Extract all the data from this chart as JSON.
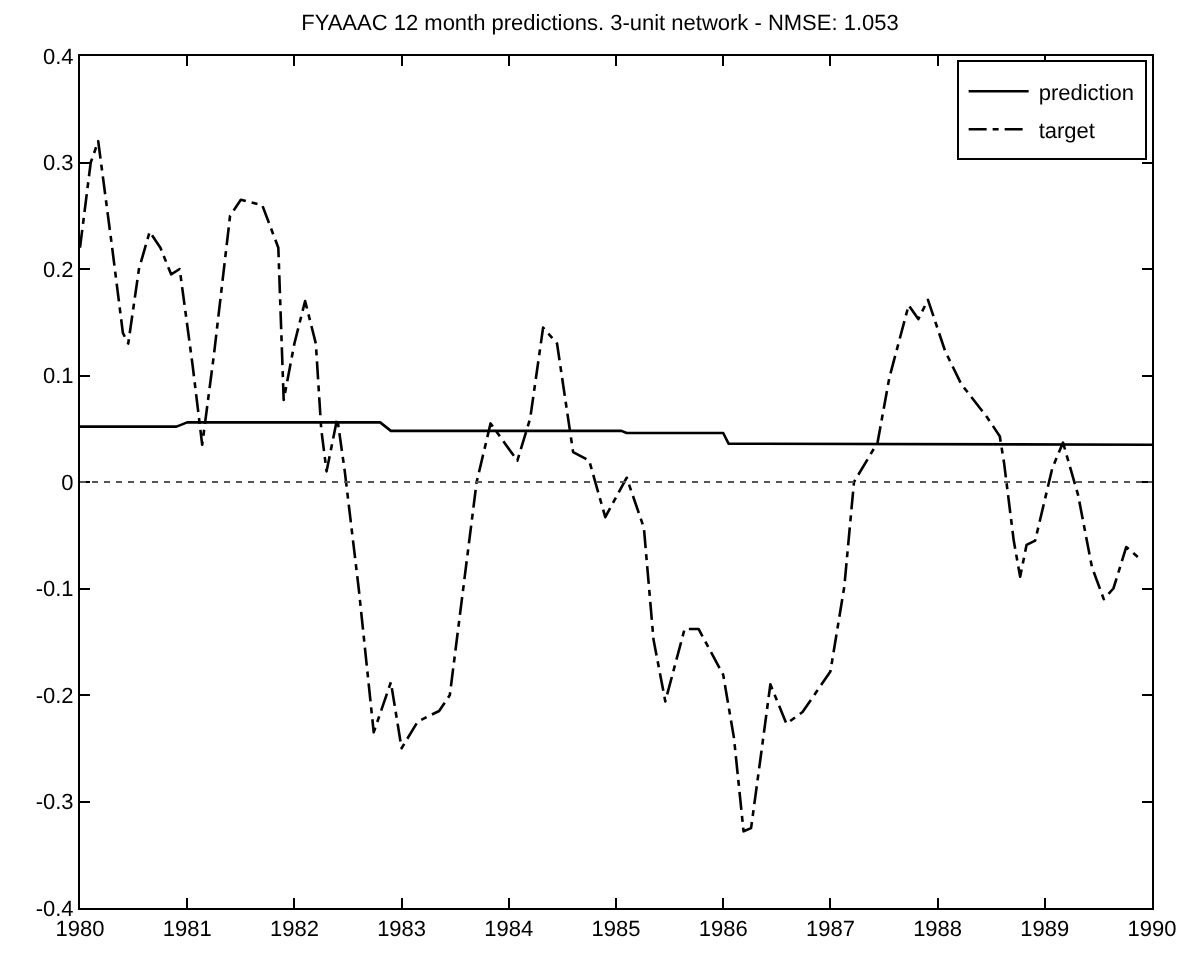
{
  "chart_data": {
    "type": "line",
    "title": "FYAAAC 12 month predictions. 3-unit network - NMSE: 1.053",
    "xlim": [
      1980,
      1990
    ],
    "xticks": [
      1980,
      1981,
      1982,
      1983,
      1984,
      1985,
      1986,
      1987,
      1988,
      1989,
      1990
    ],
    "ylim": [
      -0.4,
      0.4
    ],
    "yticks": [
      -0.4,
      -0.3,
      -0.2,
      -0.1,
      0,
      0.1,
      0.2,
      0.3,
      0.4
    ],
    "legend": "top right",
    "marker": "none",
    "ref_lines": [
      {
        "axis": "y",
        "value": 0,
        "color": "#555555",
        "line_style": "dotted"
      }
    ],
    "series": [
      {
        "name": "prediction",
        "color": "#000000",
        "line_style": "solid",
        "x": [
          1980,
          1980.9,
          1981.0,
          1982.8,
          1982.9,
          1985.05,
          1985.1,
          1986.0,
          1986.05,
          1990
        ],
        "values": [
          0.052,
          0.052,
          0.056,
          0.056,
          0.048,
          0.048,
          0.046,
          0.046,
          0.036,
          0.035
        ]
      },
      {
        "name": "target",
        "color": "#000000",
        "line_style": "dashed",
        "x": [
          1980,
          1980.1,
          1980.17,
          1980.3,
          1980.4,
          1980.45,
          1980.55,
          1980.65,
          1980.75,
          1980.85,
          1980.93,
          1981.05,
          1981.14,
          1981.25,
          1981.4,
          1981.5,
          1981.7,
          1981.85,
          1981.9,
          1982.0,
          1982.1,
          1982.2,
          1982.25,
          1982.3,
          1982.4,
          1982.47,
          1982.6,
          1982.74,
          1982.9,
          1983.0,
          1983.15,
          1983.35,
          1983.45,
          1983.6,
          1983.7,
          1983.83,
          1984.08,
          1984.2,
          1984.32,
          1984.45,
          1984.6,
          1984.75,
          1984.9,
          1985.1,
          1985.26,
          1985.35,
          1985.46,
          1985.64,
          1985.77,
          1986.0,
          1986.1,
          1986.19,
          1986.26,
          1986.35,
          1986.44,
          1986.59,
          1986.74,
          1987.0,
          1987.13,
          1987.22,
          1987.44,
          1987.55,
          1987.73,
          1987.82,
          1987.91,
          1988.07,
          1988.22,
          1988.46,
          1988.58,
          1988.62,
          1988.71,
          1988.77,
          1988.83,
          1988.91,
          1989.07,
          1989.17,
          1989.31,
          1989.44,
          1989.55,
          1989.64,
          1989.76,
          1989.91
        ],
        "values": [
          0.22,
          0.3,
          0.32,
          0.22,
          0.14,
          0.13,
          0.2,
          0.235,
          0.22,
          0.195,
          0.2,
          0.11,
          0.035,
          0.12,
          0.25,
          0.265,
          0.26,
          0.22,
          0.077,
          0.13,
          0.17,
          0.13,
          0.05,
          0.01,
          0.06,
          0.01,
          -0.1,
          -0.235,
          -0.188,
          -0.25,
          -0.225,
          -0.215,
          -0.2,
          -0.08,
          0.0,
          0.055,
          0.02,
          0.06,
          0.145,
          0.13,
          0.028,
          0.02,
          -0.033,
          0.004,
          -0.043,
          -0.148,
          -0.206,
          -0.138,
          -0.138,
          -0.181,
          -0.24,
          -0.328,
          -0.325,
          -0.258,
          -0.19,
          -0.227,
          -0.216,
          -0.178,
          -0.098,
          0.0,
          0.037,
          0.098,
          0.166,
          0.153,
          0.171,
          0.123,
          0.092,
          0.061,
          0.043,
          0.018,
          -0.055,
          -0.089,
          -0.059,
          -0.055,
          0.013,
          0.037,
          -0.012,
          -0.08,
          -0.11,
          -0.1,
          -0.061,
          -0.074
        ]
      }
    ]
  }
}
